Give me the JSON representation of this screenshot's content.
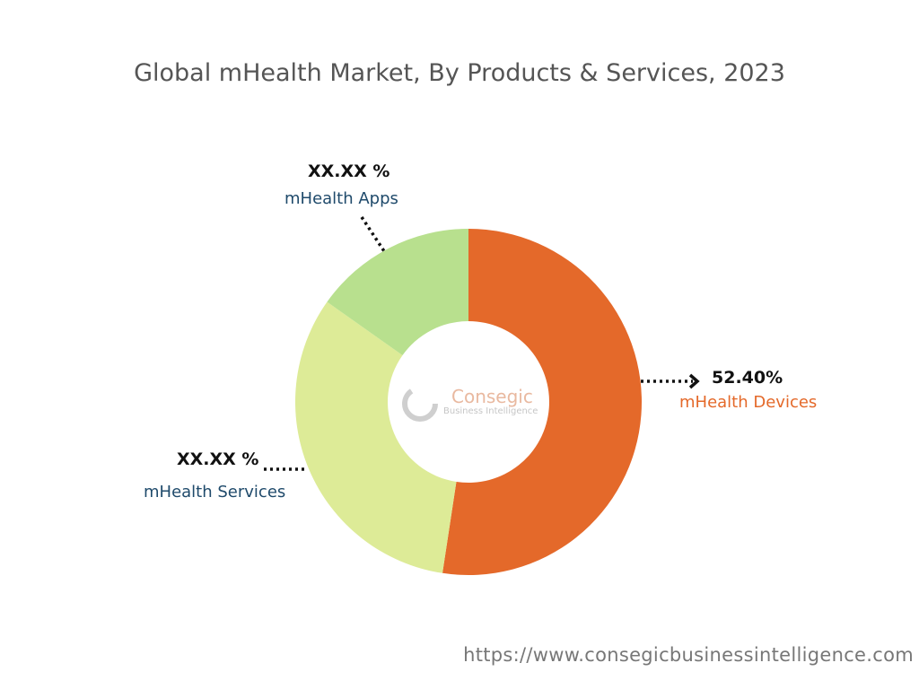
{
  "chart_data": {
    "type": "donut",
    "title": "Global mHealth Market, By Products & Services, 2023",
    "categories": [
      "mHealth Devices",
      "mHealth Services",
      "mHealth Apps"
    ],
    "values": [
      52.4,
      32.4,
      15.2
    ],
    "data_labels": [
      "52.40%",
      "XX.XX %",
      "XX.XX %"
    ],
    "colors": [
      "#E4692A",
      "#DDEB97",
      "#B8E08E"
    ],
    "label_colors": [
      "#E4692A",
      "#1F4A6B",
      "#1F4A6B"
    ]
  },
  "watermark": {
    "brand": "Consegic",
    "tagline": "Business Intelligence"
  },
  "footer": {
    "url": "https://www.consegicbusinessintelligence.com"
  }
}
